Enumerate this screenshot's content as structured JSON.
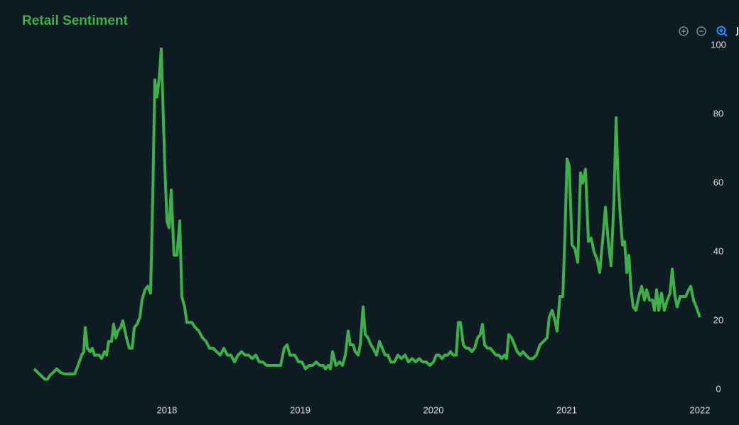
{
  "chart_data": {
    "type": "line",
    "title": "Retail Sentiment",
    "x": [
      2017.003,
      2017.056,
      2017.083,
      2017.104,
      2017.12,
      2017.147,
      2017.173,
      2017.2,
      2017.227,
      2017.307,
      2017.333,
      2017.36,
      2017.376,
      2017.387,
      2017.403,
      2017.424,
      2017.44,
      2017.456,
      2017.493,
      2017.509,
      2017.531,
      2017.547,
      2017.563,
      2017.584,
      2017.6,
      2017.616,
      2017.632,
      2017.653,
      2017.669,
      2017.696,
      2017.717,
      2017.739,
      2017.755,
      2017.776,
      2017.797,
      2017.813,
      2017.835,
      2017.856,
      2017.877,
      2017.893,
      2017.909,
      2017.925,
      2017.941,
      2017.957,
      2017.968,
      2017.984,
      2018.0,
      2018.016,
      2018.032,
      2018.053,
      2018.075,
      2018.096,
      2018.112,
      2018.133,
      2018.149,
      2018.187,
      2018.213,
      2018.24,
      2018.267,
      2018.293,
      2018.32,
      2018.347,
      2018.373,
      2018.4,
      2018.427,
      2018.453,
      2018.48,
      2018.507,
      2018.533,
      2018.56,
      2018.587,
      2018.613,
      2018.64,
      2018.667,
      2018.693,
      2018.72,
      2018.747,
      2018.8,
      2018.853,
      2018.88,
      2018.901,
      2018.923,
      2018.96,
      2018.987,
      2019.013,
      2019.04,
      2019.067,
      2019.093,
      2019.12,
      2019.147,
      2019.173,
      2019.189,
      2019.211,
      2019.227,
      2019.243,
      2019.269,
      2019.296,
      2019.317,
      2019.339,
      2019.36,
      2019.376,
      2019.397,
      2019.413,
      2019.435,
      2019.451,
      2019.472,
      2019.488,
      2019.509,
      2019.531,
      2019.547,
      2019.573,
      2019.595,
      2019.616,
      2019.637,
      2019.659,
      2019.68,
      2019.707,
      2019.733,
      2019.76,
      2019.787,
      2019.813,
      2019.84,
      2019.867,
      2019.893,
      2019.92,
      2019.947,
      2019.973,
      2020.0,
      2020.021,
      2020.043,
      2020.064,
      2020.085,
      2020.107,
      2020.128,
      2020.149,
      2020.171,
      2020.187,
      2020.203,
      2020.224,
      2020.245,
      2020.267,
      2020.288,
      2020.309,
      2020.331,
      2020.352,
      2020.368,
      2020.384,
      2020.405,
      2020.427,
      2020.448,
      2020.469,
      2020.491,
      2020.512,
      2020.533,
      2020.549,
      2020.565,
      2020.587,
      2020.608,
      2020.629,
      2020.651,
      2020.672,
      2020.693,
      2020.72,
      2020.747,
      2020.773,
      2020.8,
      2020.827,
      2020.853,
      2020.869,
      2020.891,
      2020.912,
      2020.928,
      2020.949,
      2020.971,
      2020.987,
      2021.003,
      2021.019,
      2021.04,
      2021.061,
      2021.083,
      2021.104,
      2021.12,
      2021.141,
      2021.163,
      2021.184,
      2021.205,
      2021.227,
      2021.248,
      2021.269,
      2021.291,
      2021.312,
      2021.333,
      2021.355,
      2021.371,
      2021.387,
      2021.403,
      2021.419,
      2021.435,
      2021.451,
      2021.467,
      2021.483,
      2021.499,
      2021.52,
      2021.541,
      2021.563,
      2021.584,
      2021.6,
      2021.621,
      2021.643,
      2021.659,
      2021.675,
      2021.691,
      2021.712,
      2021.733,
      2021.755,
      2021.776,
      2021.792,
      2021.813,
      2021.829,
      2021.851,
      2021.872,
      2021.893,
      2021.915,
      2021.931,
      2021.952,
      2021.973,
      2022.0
    ],
    "series": [
      {
        "color": "#3db04a",
        "values": [
          6,
          4,
          3,
          3,
          4,
          5,
          6,
          5,
          4.5,
          4.5,
          7,
          10,
          11,
          18,
          12,
          11,
          12,
          10,
          10,
          9,
          11,
          10,
          14,
          14,
          19,
          15,
          17,
          18,
          20,
          15,
          12,
          12,
          18,
          19,
          21,
          26,
          29,
          30,
          28,
          55,
          90,
          85,
          90,
          99,
          85,
          65,
          49,
          47,
          58,
          39,
          39,
          49,
          27,
          24,
          19.5,
          19.5,
          18,
          17,
          15,
          14,
          12,
          12,
          11,
          10,
          12,
          10,
          10,
          8,
          10,
          11,
          10,
          10,
          9,
          10,
          8,
          8,
          7,
          7,
          7,
          12,
          13,
          10,
          10,
          8,
          8,
          6,
          7,
          7,
          8,
          7,
          7,
          6,
          7,
          6,
          11,
          7,
          8,
          7,
          10,
          17,
          13,
          13,
          11,
          10,
          13,
          24,
          16,
          15,
          13,
          12,
          10,
          14,
          12,
          10,
          10,
          8,
          8,
          10,
          9,
          10,
          8,
          9,
          8,
          9,
          8,
          8,
          7,
          8,
          10,
          10,
          9,
          10,
          10,
          11,
          10,
          10,
          19.5,
          19.5,
          13,
          12,
          12,
          11,
          12,
          15,
          16,
          19,
          13,
          12,
          12,
          11,
          10,
          10,
          9,
          10,
          9,
          16,
          15,
          13,
          11,
          10,
          11,
          10,
          9,
          9,
          10,
          13,
          14,
          15,
          21,
          23,
          20,
          17,
          27,
          27,
          45,
          67,
          65,
          42,
          41,
          37,
          63,
          60,
          64,
          43,
          44,
          40,
          38,
          34,
          43,
          53,
          43,
          36,
          55,
          79,
          60,
          50,
          42,
          43,
          34,
          39,
          29,
          24,
          23,
          27,
          30,
          26,
          29,
          26,
          26,
          23,
          29,
          23,
          28,
          23,
          26,
          28,
          35,
          27,
          24,
          27,
          27,
          27,
          29,
          30,
          26,
          24,
          21
        ]
      }
    ],
    "xlim": [
      2016.747,
      2022.08
    ],
    "xticks": [
      2018,
      2019,
      2020,
      2021,
      2022
    ],
    "ylim": [
      0,
      100
    ],
    "yticks": [
      0,
      20,
      40,
      60,
      80,
      100
    ]
  }
}
